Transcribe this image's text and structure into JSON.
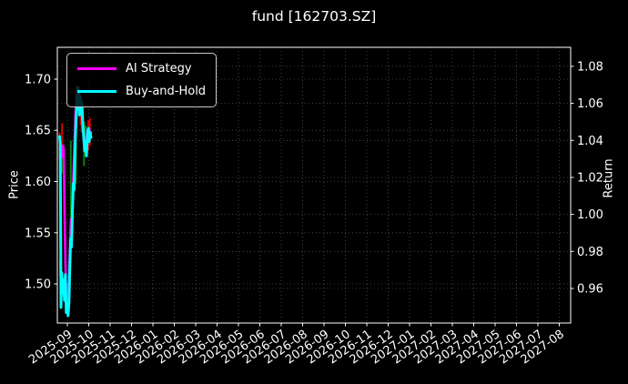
{
  "chart_data": {
    "type": "line",
    "title": "fund [162703.SZ]",
    "background": "#000000",
    "text_color": "#ffffff",
    "grid": {
      "color": "rgba(255,255,255,0.32)",
      "dash": "1 3",
      "on": true
    },
    "x_axis": {
      "tick_labels": [
        "2025-09",
        "2025-10",
        "2025-11",
        "2025-12",
        "2026-01",
        "2026-02",
        "2026-03",
        "2026-04",
        "2026-05",
        "2026-06",
        "2026-07",
        "2026-08",
        "2026-09",
        "2026-10",
        "2026-11",
        "2026-12",
        "2027-01",
        "2027-02",
        "2027-03",
        "2027-04",
        "2027-05",
        "2027-06",
        "2027-07",
        "2027-08"
      ]
    },
    "left_axis": {
      "label": "Price",
      "ticks": [
        1.5,
        1.55,
        1.6,
        1.65,
        1.7
      ],
      "range": [
        1.4618,
        1.7311
      ]
    },
    "right_axis": {
      "label": "Return",
      "ticks": [
        0.96,
        0.98,
        1.0,
        1.02,
        1.04,
        1.06,
        1.08
      ],
      "range": [
        0.9413,
        1.0903
      ]
    },
    "legend": {
      "position": "upper-left",
      "items": [
        {
          "label": "AI Strategy",
          "color": "#ff00ff"
        },
        {
          "label": "Buy-and-Hold",
          "color": "#00ffff"
        }
      ]
    },
    "series": [
      {
        "name": "AI Strategy",
        "color": "#ff00ff",
        "width": 2.6,
        "axis": "left",
        "points": [
          [
            -0.362,
            1.644
          ],
          [
            -0.319,
            1.634
          ],
          [
            -0.277,
            1.63
          ],
          [
            -0.234,
            1.624
          ],
          [
            -0.2,
            1.635
          ],
          [
            -0.17,
            1.63
          ],
          [
            -0.132,
            1.571
          ],
          [
            -0.089,
            1.518
          ],
          [
            -0.047,
            1.483
          ],
          [
            -0.004,
            1.5
          ],
          [
            0.038,
            1.479
          ],
          [
            0.081,
            1.51
          ],
          [
            0.123,
            1.536
          ],
          [
            0.166,
            1.563
          ],
          [
            0.209,
            1.553
          ],
          [
            0.251,
            1.589
          ],
          [
            0.294,
            1.612
          ],
          [
            0.336,
            1.639
          ],
          [
            0.379,
            1.665
          ],
          [
            0.421,
            1.683
          ],
          [
            0.464,
            1.693
          ],
          [
            0.489,
            1.679
          ],
          [
            0.515,
            1.692
          ],
          [
            0.54,
            1.67
          ],
          [
            0.574,
            1.68
          ],
          [
            0.609,
            1.674
          ],
          [
            0.643,
            1.68
          ],
          [
            0.685,
            1.665
          ],
          [
            0.728,
            1.652
          ],
          [
            0.77,
            1.639
          ],
          [
            0.813,
            1.643
          ],
          [
            0.855,
            1.63
          ],
          [
            0.898,
            1.643
          ],
          [
            0.94,
            1.65
          ],
          [
            0.983,
            1.643
          ],
          [
            1.026,
            1.652
          ],
          [
            1.068,
            1.643
          ],
          [
            1.111,
            1.648
          ]
        ]
      },
      {
        "name": "Buy-and-Hold",
        "color": "#00ffff",
        "width": 3,
        "axis": "left",
        "points": [
          [
            -0.362,
            1.644
          ],
          [
            -0.332,
            1.637
          ],
          [
            -0.315,
            1.555
          ],
          [
            -0.298,
            1.477
          ],
          [
            -0.264,
            1.511
          ],
          [
            -0.221,
            1.491
          ],
          [
            -0.179,
            1.504
          ],
          [
            -0.136,
            1.484
          ],
          [
            -0.094,
            1.509
          ],
          [
            -0.051,
            1.472
          ],
          [
            -0.009,
            1.481
          ],
          [
            0.034,
            1.469
          ],
          [
            0.077,
            1.482
          ],
          [
            0.119,
            1.518
          ],
          [
            0.153,
            1.544
          ],
          [
            0.196,
            1.536
          ],
          [
            0.238,
            1.571
          ],
          [
            0.281,
            1.598
          ],
          [
            0.315,
            1.592
          ],
          [
            0.349,
            1.624
          ],
          [
            0.391,
            1.651
          ],
          [
            0.434,
            1.672
          ],
          [
            0.468,
            1.689
          ],
          [
            0.494,
            1.692
          ],
          [
            0.519,
            1.674
          ],
          [
            0.545,
            1.688
          ],
          [
            0.57,
            1.665
          ],
          [
            0.604,
            1.683
          ],
          [
            0.638,
            1.67
          ],
          [
            0.681,
            1.677
          ],
          [
            0.723,
            1.656
          ],
          [
            0.766,
            1.643
          ],
          [
            0.809,
            1.63
          ],
          [
            0.851,
            1.639
          ],
          [
            0.894,
            1.625
          ],
          [
            0.936,
            1.643
          ],
          [
            0.979,
            1.652
          ],
          [
            1.021,
            1.639
          ],
          [
            1.064,
            1.648
          ],
          [
            1.106,
            1.643
          ]
        ]
      }
    ],
    "candles": [
      {
        "m": -0.36,
        "lo": 1.622,
        "hi": 1.648,
        "dir": "up"
      },
      {
        "m": -0.345,
        "lo": 1.508,
        "hi": 1.524,
        "dir": "up"
      },
      {
        "m": -0.33,
        "lo": 1.6,
        "hi": 1.622,
        "dir": "down"
      },
      {
        "m": -0.25,
        "lo": 1.63,
        "hi": 1.657,
        "dir": "up"
      },
      {
        "m": -0.23,
        "lo": 1.608,
        "hi": 1.63,
        "dir": "down"
      },
      {
        "m": 0.16,
        "lo": 1.548,
        "hi": 1.64,
        "dir": "down"
      },
      {
        "m": 0.4,
        "lo": 1.598,
        "hi": 1.638,
        "dir": "down"
      },
      {
        "m": 0.62,
        "lo": 1.655,
        "hi": 1.685,
        "dir": "up"
      },
      {
        "m": 0.665,
        "lo": 1.648,
        "hi": 1.678,
        "dir": "up"
      },
      {
        "m": 0.78,
        "lo": 1.615,
        "hi": 1.658,
        "dir": "down"
      },
      {
        "m": 0.85,
        "lo": 1.625,
        "hi": 1.655,
        "dir": "down"
      },
      {
        "m": 0.98,
        "lo": 1.63,
        "hi": 1.66,
        "dir": "up"
      },
      {
        "m": 1.05,
        "lo": 1.635,
        "hi": 1.662,
        "dir": "up"
      }
    ],
    "candle_colors": {
      "up": "#d40000",
      "down": "#0a7d0a"
    }
  }
}
